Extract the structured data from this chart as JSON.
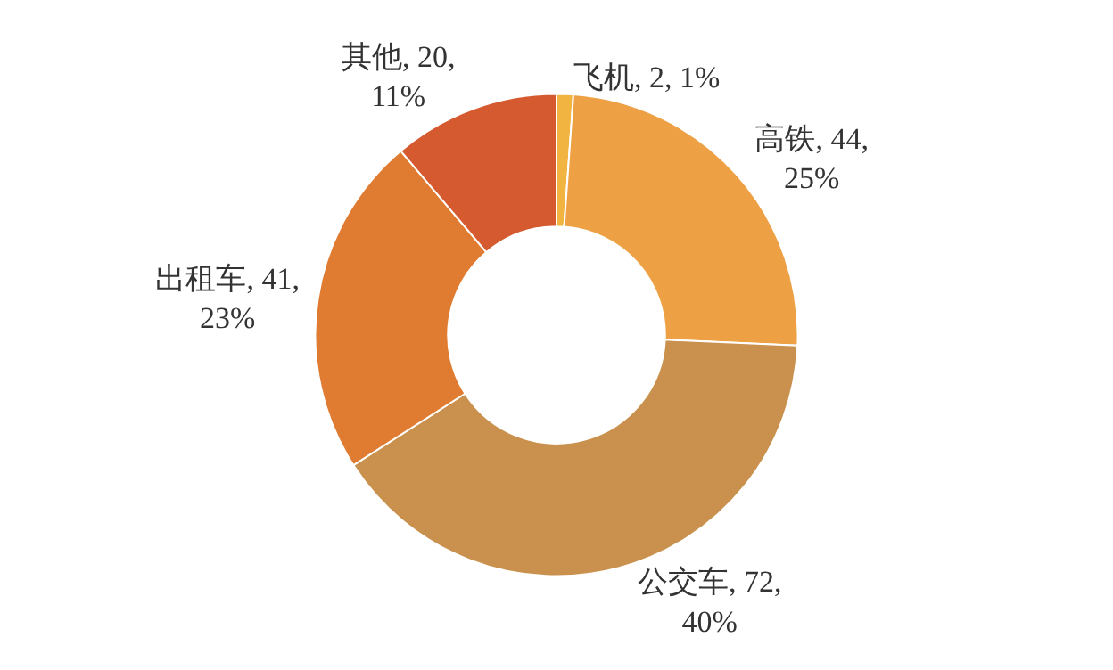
{
  "chart_data": {
    "type": "donut",
    "categories": [
      "飞机",
      "高铁",
      "公交车",
      "出租车",
      "其他"
    ],
    "values": [
      2,
      44,
      72,
      41,
      20
    ],
    "value_labels": [
      "2, 1%",
      "44,\n25%",
      "72,\n40%",
      "41,\n23%",
      "20,\n11%"
    ],
    "colors": [
      "#f2b441",
      "#eda044",
      "#c9914d",
      "#e07c32",
      "#d55a30"
    ],
    "legend": false
  }
}
